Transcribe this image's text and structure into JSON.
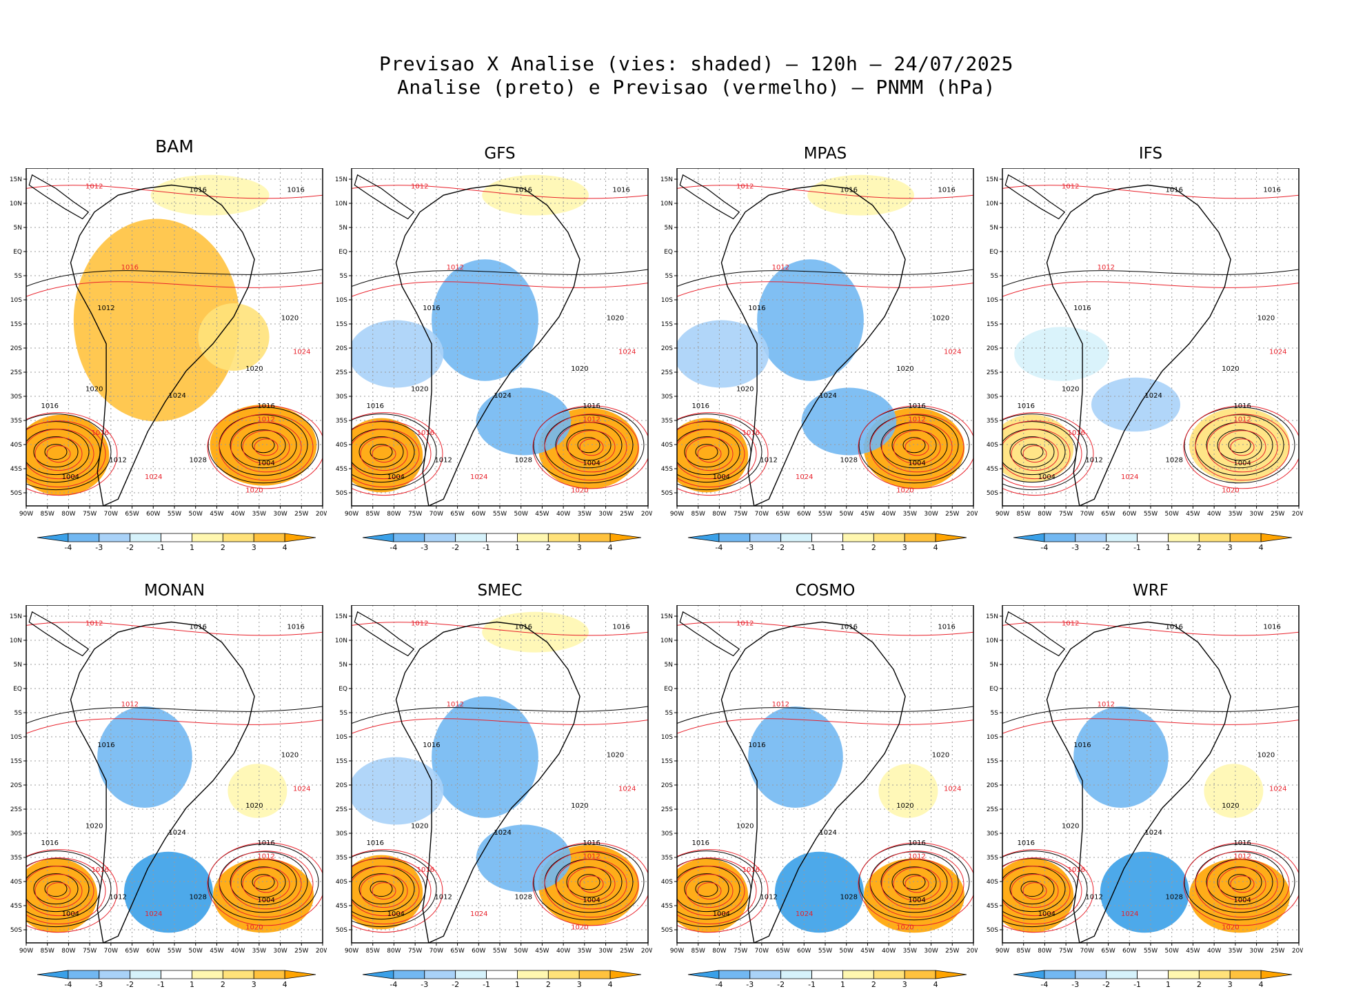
{
  "title_line1": "Previsao X Analise (vies: shaded) – 120h – 24/07/2025",
  "title_line2": "Analise (preto) e Previsao (vermelho) – PNMM (hPa)",
  "lat_labels": [
    "15N",
    "10N",
    "5N",
    "EQ",
    "5S",
    "10S",
    "15S",
    "20S",
    "25S",
    "30S",
    "35S",
    "40S",
    "45S",
    "50S"
  ],
  "lon_labels": [
    "90W",
    "85W",
    "80W",
    "75W",
    "70W",
    "65W",
    "60W",
    "55W",
    "50W",
    "45W",
    "40W",
    "35W",
    "30W",
    "25W",
    "20W"
  ],
  "colorbar": {
    "labels": [
      "-4",
      "-3",
      "-2",
      "-1",
      "1",
      "2",
      "3",
      "4"
    ],
    "colors": [
      "#3aa0e8",
      "#72b8f2",
      "#a9d2f8",
      "#d6f2fb",
      "#ffffff",
      "#fff7b0",
      "#ffe27a",
      "#ffc23e",
      "#ffa400"
    ]
  },
  "line_colors": {
    "analysis": "#000000",
    "forecast": "#e8202a"
  },
  "panels": [
    {
      "name": "BAM",
      "contours": [
        "1012",
        "1016",
        "1016",
        "1016",
        "1012",
        "1020",
        "1024",
        "1020",
        "1016",
        "1012",
        "1004",
        "1016",
        "1024",
        "1028",
        "1004",
        "1020",
        "1024",
        "1012",
        "1016",
        "1020"
      ]
    },
    {
      "name": "GFS",
      "contours": [
        "1012",
        "1016",
        "1016",
        "1012",
        "1016",
        "1020",
        "1024",
        "1020",
        "1016",
        "1012",
        "1004",
        "1016",
        "1024",
        "1028",
        "1004",
        "1020",
        "1024",
        "1012",
        "1016",
        "1020"
      ]
    },
    {
      "name": "MPAS",
      "contours": [
        "1012",
        "1016",
        "1016",
        "1012",
        "1016",
        "1020",
        "1024",
        "1020",
        "1016",
        "1012",
        "1004",
        "1016",
        "1024",
        "1028",
        "1004",
        "1020",
        "1024",
        "1012",
        "1016",
        "1020"
      ]
    },
    {
      "name": "IFS",
      "contours": [
        "1012",
        "1016",
        "1016",
        "1012",
        "1016",
        "1020",
        "1024",
        "1020",
        "1016",
        "1012",
        "1004",
        "1016",
        "1024",
        "1028",
        "1004",
        "1020",
        "1024",
        "1012",
        "1016",
        "1020"
      ]
    },
    {
      "name": "MONAN",
      "contours": [
        "1012",
        "1016",
        "1016",
        "1012",
        "1016",
        "1020",
        "1024",
        "1020",
        "1016",
        "1012",
        "1004",
        "1016",
        "1024",
        "1028",
        "1004",
        "1020",
        "1024",
        "1012",
        "1016",
        "1020"
      ]
    },
    {
      "name": "SMEC",
      "contours": [
        "1012",
        "1016",
        "1016",
        "1012",
        "1016",
        "1020",
        "1024",
        "1020",
        "1016",
        "1012",
        "1004",
        "1016",
        "1024",
        "1028",
        "1004",
        "1020",
        "1024",
        "1012",
        "1016",
        "1020"
      ]
    },
    {
      "name": "COSMO",
      "contours": [
        "1012",
        "1016",
        "1016",
        "1012",
        "1016",
        "1020",
        "1024",
        "1020",
        "1016",
        "1012",
        "1004",
        "1016",
        "1024",
        "1028",
        "1004",
        "1020",
        "1024",
        "1012",
        "1016",
        "1020"
      ]
    },
    {
      "name": "WRF",
      "contours": [
        "1012",
        "1016",
        "1016",
        "1012",
        "1016",
        "1020",
        "1024",
        "1020",
        "1016",
        "1012",
        "1004",
        "1016",
        "1024",
        "1028",
        "1004",
        "1020",
        "1024",
        "1012",
        "1016",
        "1020"
      ]
    }
  ]
}
